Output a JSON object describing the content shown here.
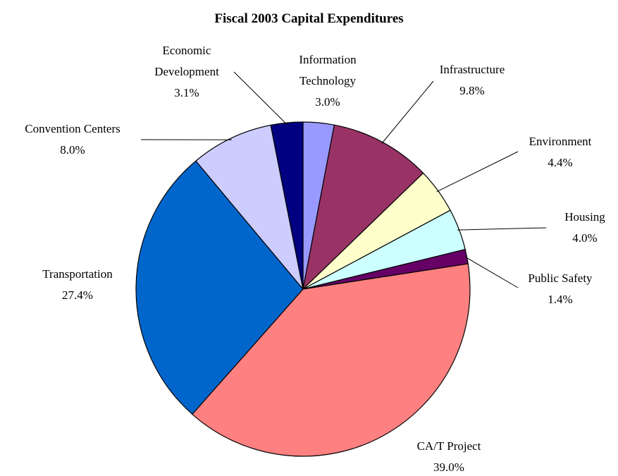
{
  "chart_data": {
    "type": "pie",
    "title": "Fiscal 2003 Capital Expenditures",
    "categories": [
      "Information Technology",
      "Infrastructure",
      "Environment",
      "Housing",
      "Public Safety",
      "CA/T Project",
      "Transportation",
      "Convention Centers",
      "Economic Development"
    ],
    "values": [
      3.0,
      9.8,
      4.4,
      4.0,
      1.4,
      39.0,
      27.4,
      8.0,
      3.1
    ],
    "value_labels": [
      "3.0%",
      "9.8%",
      "4.4%",
      "4.0%",
      "1.4%",
      "39.0%",
      "27.4%",
      "8.0%",
      "3.1%"
    ],
    "colors": [
      "#9999ff",
      "#993366",
      "#ffffcc",
      "#ccffff",
      "#660066",
      "#ff8080",
      "#0066cc",
      "#ccccff",
      "#000080"
    ]
  }
}
